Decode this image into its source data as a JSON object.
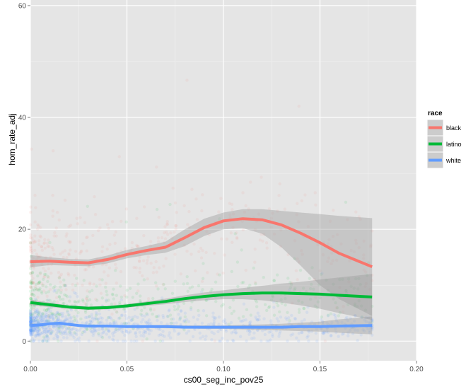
{
  "chart_data": {
    "type": "scatter",
    "title": "",
    "xlabel": "cs00_seg_inc_pov25",
    "ylabel": "hom_rate_adj",
    "xlim": [
      0,
      0.2
    ],
    "ylim": [
      -3.5,
      61
    ],
    "x_ticks": [
      "0.00",
      "0.05",
      "0.10",
      "0.15",
      "0.20"
    ],
    "y_ticks": [
      "0",
      "20",
      "40",
      "60"
    ],
    "grid": true,
    "legend": {
      "title": "race",
      "placement": "right"
    },
    "series": [
      {
        "name": "black",
        "color": "#F8766D",
        "smooth": {
          "x": [
            0,
            0.01,
            0.02,
            0.03,
            0.04,
            0.05,
            0.06,
            0.07,
            0.08,
            0.09,
            0.1,
            0.11,
            0.12,
            0.13,
            0.14,
            0.15,
            0.16,
            0.177
          ],
          "y": [
            14.2,
            14.3,
            14.1,
            14.0,
            14.6,
            15.5,
            16.2,
            16.8,
            18.5,
            20.3,
            21.5,
            21.9,
            21.7,
            20.8,
            19.3,
            17.6,
            15.7,
            13.3
          ],
          "lower": [
            13.2,
            13.6,
            13.5,
            13.4,
            13.9,
            14.8,
            15.4,
            15.8,
            17.0,
            18.8,
            20.0,
            20.2,
            19.2,
            16.8,
            13.5,
            10.0,
            7.5,
            4.5
          ],
          "upper": [
            15.4,
            15.0,
            14.7,
            14.6,
            15.3,
            16.3,
            17.0,
            17.8,
            20.0,
            21.9,
            23.0,
            23.6,
            23.6,
            23.3,
            23.0,
            22.7,
            22.4,
            22.0
          ]
        }
      },
      {
        "name": "latino",
        "color": "#00BA38",
        "smooth": {
          "x": [
            0,
            0.01,
            0.02,
            0.03,
            0.04,
            0.05,
            0.06,
            0.07,
            0.08,
            0.09,
            0.1,
            0.11,
            0.12,
            0.13,
            0.14,
            0.15,
            0.16,
            0.177
          ],
          "y": [
            6.9,
            6.5,
            6.1,
            5.9,
            6.0,
            6.3,
            6.7,
            7.1,
            7.6,
            8.0,
            8.3,
            8.5,
            8.6,
            8.6,
            8.5,
            8.4,
            8.2,
            7.9
          ],
          "lower": [
            6.4,
            6.1,
            5.8,
            5.6,
            5.7,
            6.0,
            6.3,
            6.6,
            7.0,
            7.3,
            7.5,
            7.5,
            7.3,
            6.9,
            6.4,
            5.8,
            5.0,
            3.8
          ],
          "upper": [
            7.4,
            6.9,
            6.4,
            6.2,
            6.3,
            6.6,
            7.1,
            7.6,
            8.2,
            8.7,
            9.1,
            9.5,
            9.9,
            10.3,
            10.6,
            11.0,
            11.4,
            12.0
          ]
        }
      },
      {
        "name": "white",
        "color": "#619CFF",
        "smooth": {
          "x": [
            0,
            0.005,
            0.01,
            0.015,
            0.02,
            0.025,
            0.03,
            0.04,
            0.05,
            0.06,
            0.07,
            0.08,
            0.09,
            0.1,
            0.11,
            0.12,
            0.13,
            0.14,
            0.15,
            0.16,
            0.177
          ],
          "y": [
            2.8,
            2.9,
            3.1,
            3.2,
            3.0,
            2.8,
            2.7,
            2.7,
            2.6,
            2.6,
            2.6,
            2.5,
            2.5,
            2.5,
            2.5,
            2.5,
            2.5,
            2.6,
            2.6,
            2.7,
            2.8
          ],
          "lower": [
            2.5,
            2.7,
            2.9,
            3.0,
            2.8,
            2.6,
            2.5,
            2.5,
            2.4,
            2.4,
            2.3,
            2.3,
            2.2,
            2.2,
            2.1,
            2.0,
            1.9,
            1.8,
            1.7,
            1.5,
            1.2
          ],
          "upper": [
            3.1,
            3.1,
            3.3,
            3.4,
            3.2,
            3.0,
            2.9,
            2.9,
            2.8,
            2.8,
            2.9,
            2.8,
            2.8,
            2.8,
            2.9,
            3.0,
            3.1,
            3.3,
            3.5,
            3.9,
            4.4
          ]
        }
      }
    ]
  }
}
